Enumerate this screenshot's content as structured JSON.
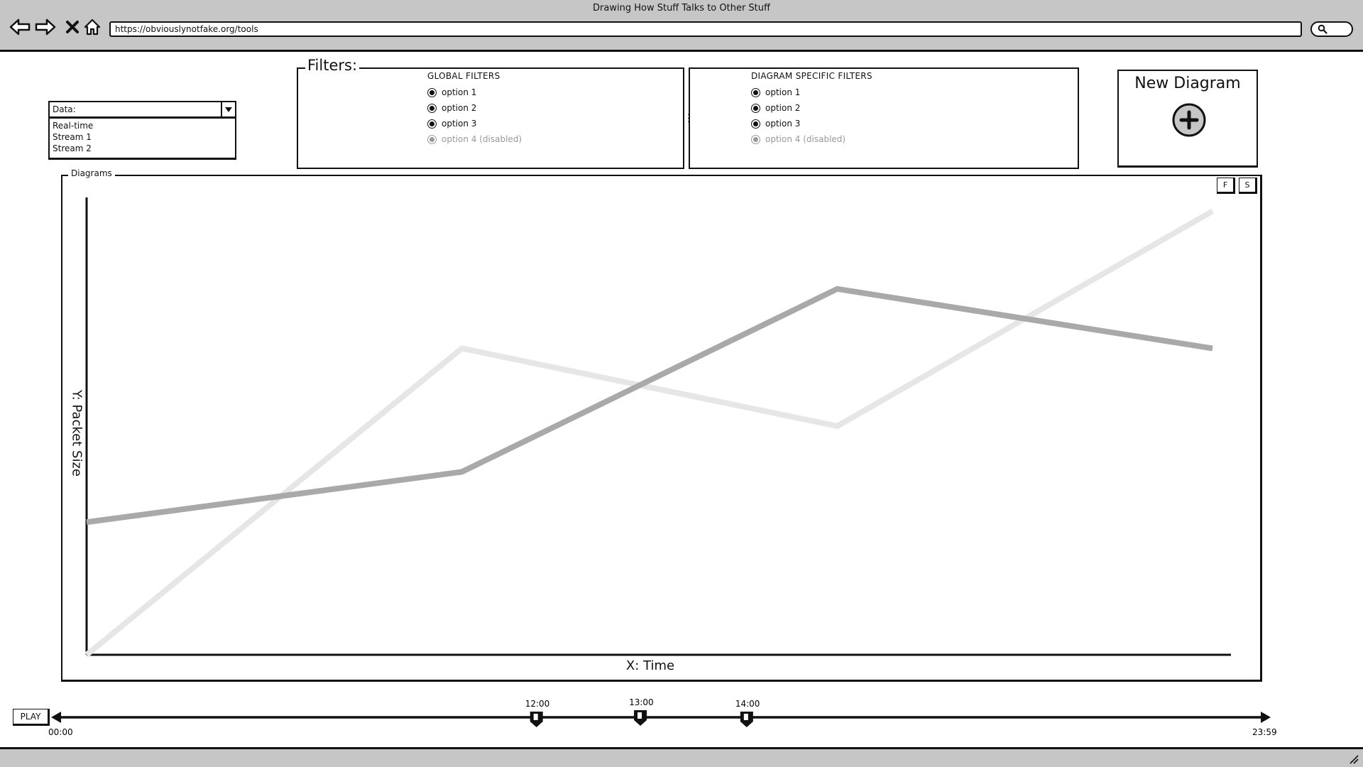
{
  "window": {
    "title": "Drawing How Stuff Talks to Other Stuff",
    "url": "https://obviouslynotfake.org/tools"
  },
  "data_select": {
    "label": "Data:",
    "options": [
      "Real-time",
      "Stream 1",
      "Stream 2"
    ]
  },
  "filters": {
    "legend": "Filters:",
    "global": {
      "heading": "GLOBAL FILTERS",
      "options": [
        {
          "label": "option 1",
          "selected": true,
          "disabled": false
        },
        {
          "label": "option 2",
          "selected": true,
          "disabled": false
        },
        {
          "label": "option 3",
          "selected": true,
          "disabled": false
        },
        {
          "label": "option 4 (disabled)",
          "selected": true,
          "disabled": true
        }
      ]
    },
    "diagram_specific": {
      "heading": "DIAGRAM SPECIFIC FILTERS",
      "options": [
        {
          "label": "option 1",
          "selected": true,
          "disabled": false
        },
        {
          "label": "option 2",
          "selected": true,
          "disabled": false
        },
        {
          "label": "option 3",
          "selected": true,
          "disabled": false
        },
        {
          "label": "option 4 (disabled)",
          "selected": true,
          "disabled": true
        }
      ]
    }
  },
  "new_diagram": {
    "label": "New Diagram",
    "icon": "plus-circle-icon"
  },
  "diagrams": {
    "legend": "Diagrams",
    "buttons": [
      "F",
      "S"
    ]
  },
  "chart_data": {
    "type": "line",
    "xlabel": "X: Time",
    "ylabel": "Y: Packet Size",
    "x": [
      0,
      1,
      2,
      3
    ],
    "ylim": [
      0,
      100
    ],
    "series": [
      {
        "color": "#e6e6e6",
        "values": [
          0,
          67,
          50,
          97
        ]
      },
      {
        "color": "#a9a9a9",
        "values": [
          29,
          40,
          80,
          67
        ]
      }
    ]
  },
  "timeline": {
    "play_label": "PLAY",
    "start": "00:00",
    "end": "23:59",
    "markers": [
      {
        "label": "12:00",
        "position": 0.397
      },
      {
        "label": "13:00",
        "position": 0.483
      },
      {
        "label": "14:00",
        "position": 0.571
      }
    ]
  },
  "colors": {
    "chrome": "#c6c6c6",
    "disabled_text": "#999999"
  }
}
